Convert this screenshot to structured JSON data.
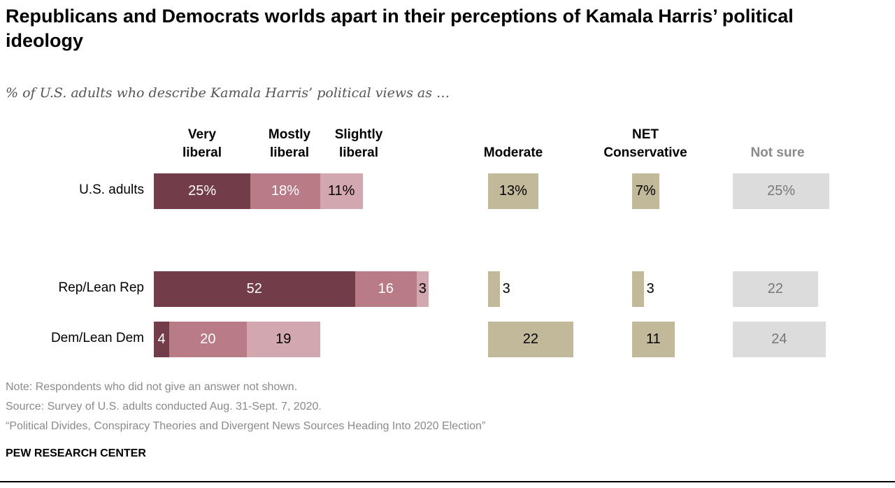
{
  "chart_data": {
    "type": "bar",
    "title": "Republicans and Democrats worlds apart in their perceptions of Kamala Harris’ political ideology",
    "subtitle": "% of U.S. adults who describe Kamala Harris’ political views as …",
    "categories": [
      "U.S. adults",
      "Rep/Lean Rep",
      "Dem/Lean Dem"
    ],
    "value_labels_percent_on_first_row": true,
    "groups": [
      {
        "series": [
          {
            "name": "Very liberal",
            "values": [
              25,
              52,
              4
            ],
            "color": "#723d49",
            "text_color": "#ffffff"
          },
          {
            "name": "Mostly liberal",
            "values": [
              18,
              16,
              20
            ],
            "color": "#b97b86",
            "text_color": "#ffffff"
          },
          {
            "name": "Slightly liberal",
            "values": [
              11,
              3,
              19
            ],
            "color": "#d3a7af",
            "text_color": "#000000"
          }
        ]
      },
      {
        "series": [
          {
            "name": "Moderate",
            "values": [
              13,
              3,
              22
            ],
            "color": "#c2b99a",
            "text_color": "#000000"
          }
        ]
      },
      {
        "series": [
          {
            "name": "NET Conservative",
            "values": [
              7,
              3,
              11
            ],
            "color": "#c2b99a",
            "text_color": "#000000"
          }
        ]
      },
      {
        "series": [
          {
            "name": "Not sure",
            "values": [
              25,
              22,
              24
            ],
            "color": "#dcdcdc",
            "text_color": "#777777",
            "header_color": "#8a8a8a"
          }
        ]
      }
    ],
    "column_headers": [
      "Very\nliberal",
      "Mostly\nliberal",
      "Slightly\nliberal",
      "Moderate",
      "NET\nConservative",
      "Not sure"
    ],
    "xlim": [
      0,
      100
    ],
    "grid": false,
    "legend": "column headers above bars"
  },
  "notes": [
    "Note: Respondents who did not give an answer not shown.",
    "Source: Survey of U.S. adults conducted Aug. 31-Sept. 7, 2020.",
    "“Political Divides, Conspiracy Theories and Divergent News Sources Heading Into 2020 Election”"
  ],
  "brand": "PEW RESEARCH CENTER"
}
